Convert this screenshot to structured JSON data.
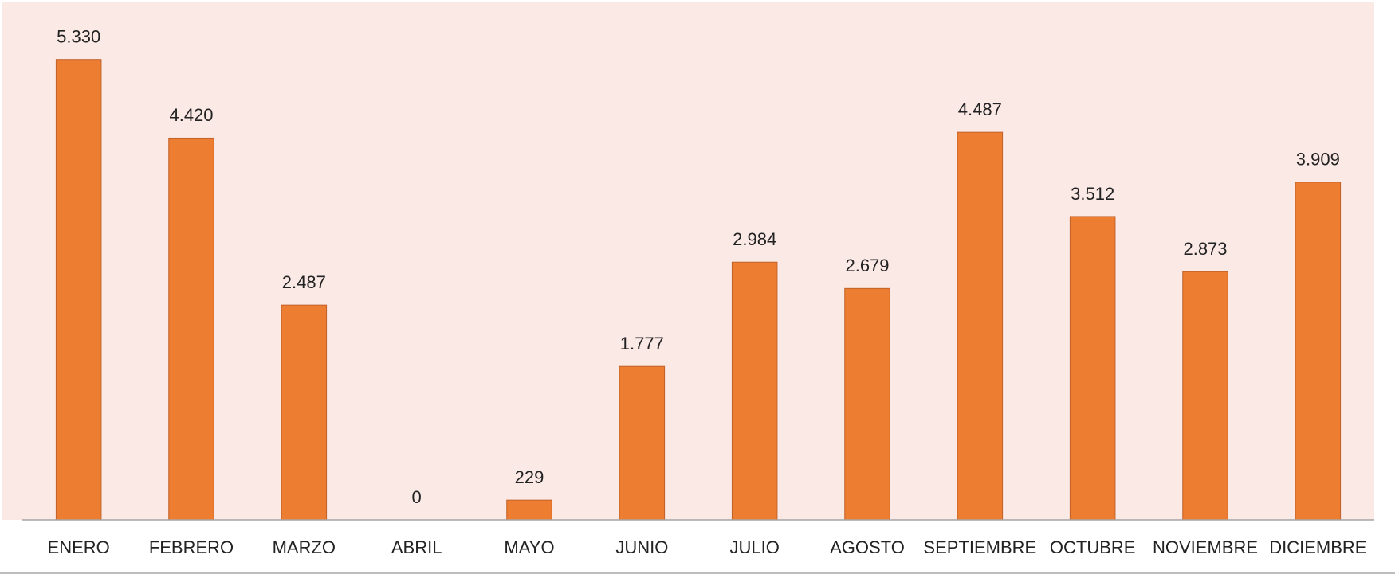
{
  "chart_data": {
    "type": "bar",
    "categories": [
      "ENERO",
      "FEBRERO",
      "MARZO",
      "ABRIL",
      "MAYO",
      "JUNIO",
      "JULIO",
      "AGOSTO",
      "SEPTIEMBRE",
      "OCTUBRE",
      "NOVIEMBRE",
      "DICIEMBRE"
    ],
    "values": [
      5330,
      4420,
      2487,
      0,
      229,
      1777,
      2984,
      2679,
      4487,
      3512,
      2873,
      3909
    ],
    "value_labels": [
      "5.330",
      "4.420",
      "2.487",
      "0",
      "229",
      "1.777",
      "2.984",
      "2.679",
      "4.487",
      "3.512",
      "2.873",
      "3.909"
    ],
    "color": "#ed7d31",
    "ylim": [
      0,
      6000
    ]
  }
}
